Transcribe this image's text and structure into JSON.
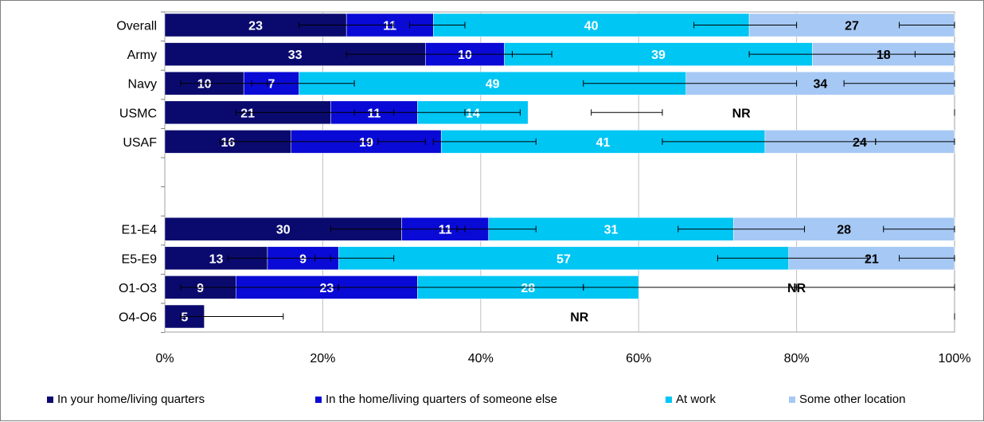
{
  "chart_data": {
    "type": "bar",
    "orientation": "horizontal",
    "stacked": true,
    "categories": [
      "Overall",
      "Army",
      "Navy",
      "USMC",
      "USAF",
      "",
      "",
      "E1-E4",
      "E5-E9",
      "O1-O3",
      "O4-O6"
    ],
    "series": [
      {
        "name": "In your home/living quarters",
        "color": "#0a0a6e",
        "values": [
          23,
          33,
          10,
          21,
          16,
          null,
          null,
          30,
          13,
          9,
          5
        ],
        "labels": [
          "23",
          "33",
          "10",
          "21",
          "16",
          "",
          "",
          "30",
          "13",
          "9",
          "5"
        ],
        "label_color": "#ffffff"
      },
      {
        "name": "In the home/living quarters of someone else",
        "color": "#0a0ad6",
        "values": [
          11,
          10,
          7,
          11,
          19,
          null,
          null,
          11,
          9,
          23,
          null
        ],
        "labels": [
          "11",
          "10",
          "7",
          "11",
          "19",
          "",
          "",
          "11",
          "9",
          "23",
          ""
        ],
        "label_color": "#ffffff"
      },
      {
        "name": "At work",
        "color": "#00c6f4",
        "values": [
          40,
          39,
          49,
          14,
          41,
          null,
          null,
          31,
          57,
          28,
          null
        ],
        "labels": [
          "40",
          "39",
          "49",
          "14",
          "41",
          "",
          "",
          "31",
          "57",
          "28",
          ""
        ],
        "label_color": "#ffffff"
      },
      {
        "name": "Some other location",
        "color": "#a6c8f4",
        "values": [
          27,
          18,
          34,
          null,
          24,
          null,
          null,
          28,
          21,
          null,
          null
        ],
        "labels": [
          "27",
          "18",
          "34",
          "",
          "24",
          "",
          "",
          "28",
          "21",
          "",
          ""
        ],
        "label_color": "#000000"
      }
    ],
    "nr_label": "NR",
    "nr_rows": [
      3,
      9,
      10
    ],
    "error_bars": [
      [
        [
          17,
          29
        ],
        [
          31,
          38
        ],
        [
          67,
          80
        ],
        [
          93,
          100
        ]
      ],
      [
        [
          23,
          44
        ],
        [
          44,
          49
        ],
        [
          74,
          100
        ],
        [
          95,
          100
        ]
      ],
      [
        [
          2,
          13
        ],
        [
          11,
          24
        ],
        [
          53,
          80
        ],
        [
          86,
          100
        ]
      ],
      [
        [
          9,
          29
        ],
        [
          24,
          38
        ],
        [
          38,
          45
        ],
        [
          54,
          63
        ],
        [
          100,
          100
        ]
      ],
      [
        [
          7,
          26
        ],
        [
          27,
          33
        ],
        [
          34,
          47
        ],
        [
          63,
          90
        ],
        [
          90,
          100
        ]
      ],
      null,
      null,
      [
        [
          21,
          38
        ],
        [
          37,
          47
        ],
        [
          65,
          81
        ],
        [
          91,
          100
        ]
      ],
      [
        [
          8,
          21
        ],
        [
          19,
          29
        ],
        [
          70,
          89
        ],
        [
          93,
          100
        ]
      ],
      [
        [
          2,
          22
        ],
        [
          22,
          53
        ],
        [
          53,
          80
        ],
        [
          80,
          100
        ]
      ],
      [
        [
          2,
          15
        ],
        [
          100,
          100
        ]
      ]
    ],
    "x_ticks": [
      "0%",
      "20%",
      "40%",
      "60%",
      "80%",
      "100%"
    ],
    "xlim": [
      0,
      100
    ],
    "grid": true,
    "legend_position": "bottom",
    "title": "",
    "xlabel": "",
    "ylabel": ""
  }
}
